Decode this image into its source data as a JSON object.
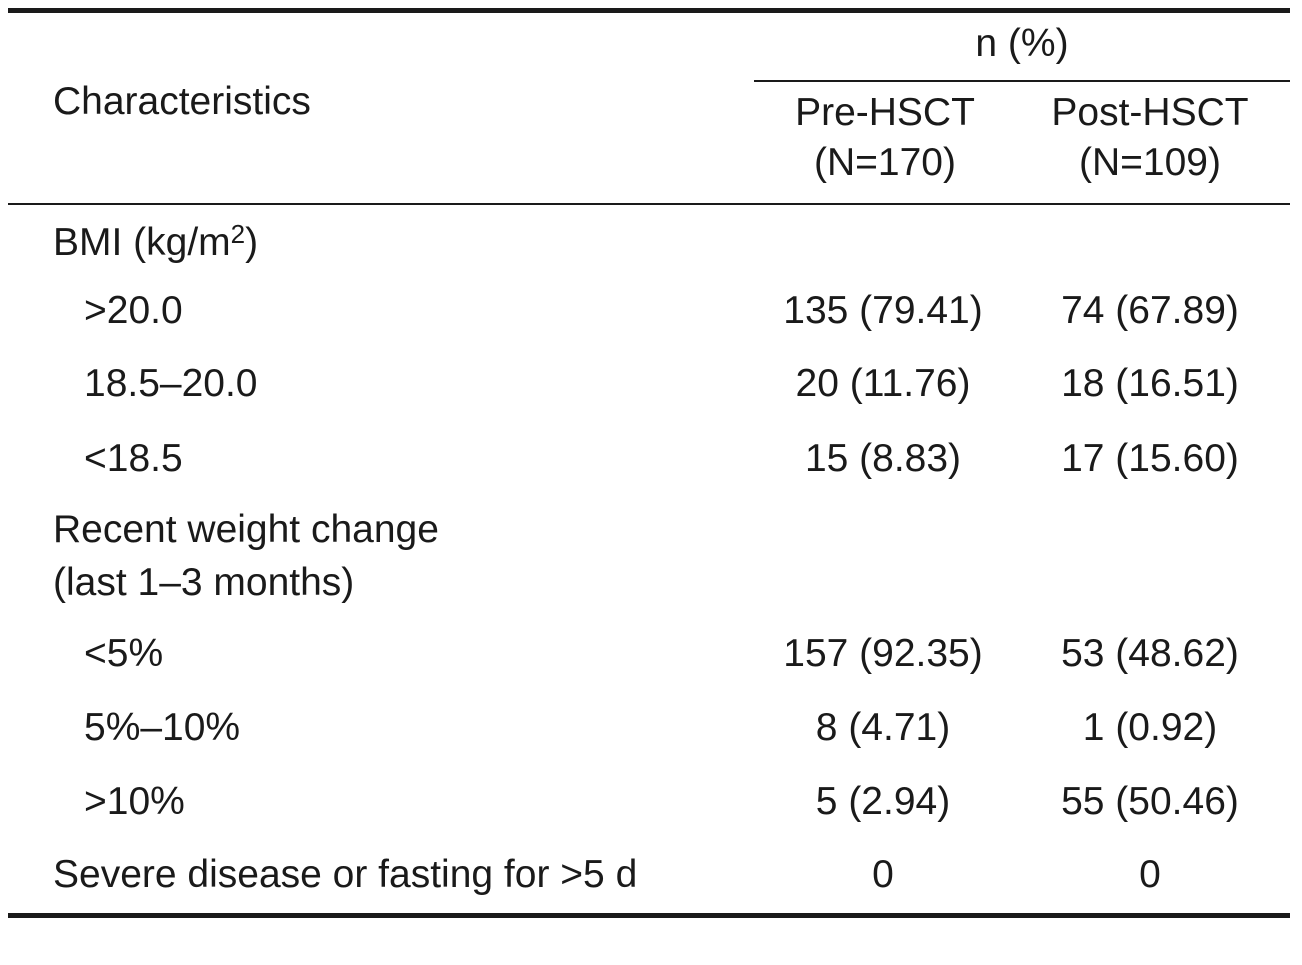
{
  "header": {
    "group_label": "n (%)",
    "characteristics_label": "Characteristics",
    "col1_line1": "Pre-HSCT",
    "col1_line2": "(N=170)",
    "col2_line1": "Post-HSCT",
    "col2_line2": "(N=109)"
  },
  "sections": {
    "bmi": {
      "label_prefix": "BMI (kg/m",
      "label_sup": "2",
      "label_suffix": ")",
      "rows": [
        {
          "label": ">20.0",
          "pre": "135 (79.41)",
          "post": "74 (67.89)"
        },
        {
          "label": "18.5–20.0",
          "pre": "20 (11.76)",
          "post": "18 (16.51)"
        },
        {
          "label": "<18.5",
          "pre": "15 (8.83)",
          "post": "17 (15.60)"
        }
      ]
    },
    "weight": {
      "label_line1": "Recent weight change",
      "label_line2": "(last 1–3 months)",
      "rows": [
        {
          "label": "<5%",
          "pre": "157 (92.35)",
          "post": "53 (48.62)"
        },
        {
          "label": "5%–10%",
          "pre": "8 (4.71)",
          "post": "1 (0.92)"
        },
        {
          "label": ">10%",
          "pre": "5 (2.94)",
          "post": "55 (50.46)"
        }
      ]
    },
    "severe": {
      "label": "Severe disease or fasting for >5 d",
      "pre": "0",
      "post": "0"
    }
  }
}
